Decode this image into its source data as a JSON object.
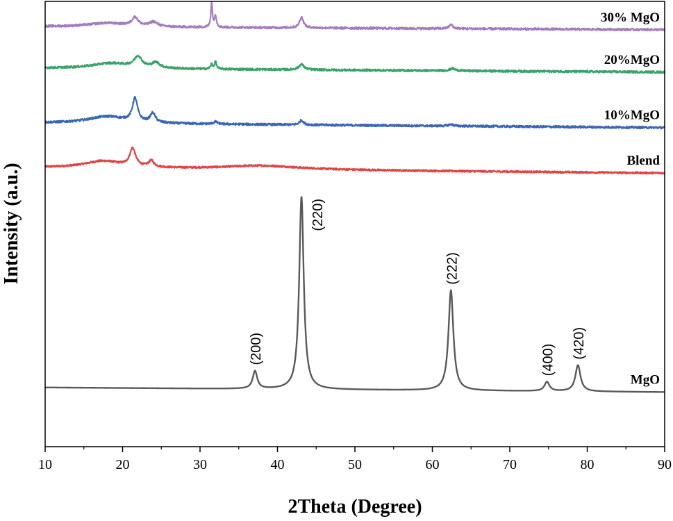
{
  "chart_data": {
    "type": "line",
    "xlabel": "2Theta (Degree)",
    "ylabel": "Intensity (a.u.)",
    "xlim": [
      10,
      90
    ],
    "x_ticks": [
      "10",
      "20",
      "30",
      "40",
      "50",
      "60",
      "70",
      "80",
      "90"
    ],
    "y_ticks_shown": false,
    "grid": false,
    "series": [
      {
        "name": "MgO",
        "color": "#595959",
        "baseline_level": 2.0,
        "slope": -0.6,
        "noise": 0.0,
        "peaks": [
          {
            "x": 37.1,
            "height": 2.3,
            "width": 0.35,
            "label": "(200)"
          },
          {
            "x": 43.1,
            "height": 25.0,
            "width": 0.35,
            "label": "(220)"
          },
          {
            "x": 62.4,
            "height": 13.0,
            "width": 0.38,
            "label": "(222)"
          },
          {
            "x": 74.8,
            "height": 1.2,
            "width": 0.38,
            "label": "(400)"
          },
          {
            "x": 78.8,
            "height": 3.4,
            "width": 0.4,
            "label": "(420)"
          }
        ]
      },
      {
        "name": "Blend",
        "color": "#e04545",
        "baseline_level": 30.5,
        "slope": -0.7,
        "noise": 0.12,
        "peaks": [
          {
            "x": 17.5,
            "height": 0.9,
            "width": 3.0
          },
          {
            "x": 21.3,
            "height": 2.3,
            "width": 0.45
          },
          {
            "x": 23.7,
            "height": 0.8,
            "width": 0.4
          },
          {
            "x": 38.0,
            "height": 0.5,
            "width": 6.0
          }
        ]
      },
      {
        "name": "10%MgO",
        "color": "#3a66b6",
        "baseline_level": 36.3,
        "slope": -0.6,
        "noise": 0.14,
        "peaks": [
          {
            "x": 18.0,
            "height": 0.9,
            "width": 3.0
          },
          {
            "x": 21.6,
            "height": 3.0,
            "width": 0.4
          },
          {
            "x": 23.9,
            "height": 1.2,
            "width": 0.4
          },
          {
            "x": 32.0,
            "height": 0.3,
            "width": 0.3
          },
          {
            "x": 43.1,
            "height": 0.6,
            "width": 0.3
          },
          {
            "x": 62.4,
            "height": 0.2,
            "width": 0.4
          }
        ]
      },
      {
        "name": "20%MgO",
        "color": "#3aa26a",
        "baseline_level": 43.4,
        "slope": -0.5,
        "noise": 0.14,
        "peaks": [
          {
            "x": 18.5,
            "height": 0.7,
            "width": 3.0
          },
          {
            "x": 22.0,
            "height": 1.4,
            "width": 0.6
          },
          {
            "x": 24.3,
            "height": 0.7,
            "width": 0.6
          },
          {
            "x": 31.5,
            "height": 0.6,
            "width": 0.15
          },
          {
            "x": 32.0,
            "height": 1.0,
            "width": 0.15
          },
          {
            "x": 43.1,
            "height": 0.7,
            "width": 0.4
          },
          {
            "x": 62.6,
            "height": 0.3,
            "width": 0.4
          }
        ]
      },
      {
        "name": "30% MgO",
        "color": "#a57bbd",
        "baseline_level": 48.8,
        "slope": -0.4,
        "noise": 0.14,
        "peaks": [
          {
            "x": 18.0,
            "height": 0.5,
            "width": 3.0
          },
          {
            "x": 21.6,
            "height": 1.1,
            "width": 0.5
          },
          {
            "x": 24.0,
            "height": 0.6,
            "width": 0.6
          },
          {
            "x": 31.5,
            "height": 3.2,
            "width": 0.12
          },
          {
            "x": 32.0,
            "height": 1.5,
            "width": 0.15
          },
          {
            "x": 43.1,
            "height": 1.4,
            "width": 0.3
          },
          {
            "x": 62.4,
            "height": 0.5,
            "width": 0.3
          }
        ]
      }
    ]
  }
}
